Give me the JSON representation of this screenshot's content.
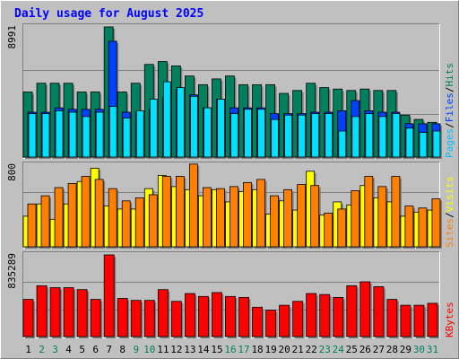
{
  "chart_data": {
    "type": "bar",
    "title": "Daily usage for August 2025",
    "categories": [
      "1",
      "2",
      "3",
      "4",
      "5",
      "6",
      "7",
      "8",
      "9",
      "10",
      "11",
      "12",
      "13",
      "14",
      "15",
      "16",
      "17",
      "18",
      "19",
      "20",
      "21",
      "22",
      "23",
      "24",
      "25",
      "26",
      "27",
      "28",
      "29",
      "30",
      "31"
    ],
    "weekend_days": [
      "2",
      "3",
      "9",
      "10",
      "16",
      "17",
      "23",
      "24",
      "30",
      "31"
    ],
    "colors": {
      "title": "#0000ff",
      "hits": "#00805c",
      "files": "#0040ff",
      "pages": "#00e0ff",
      "visits": "#ffff00",
      "sites": "#ff8000",
      "kbytes": "#ff0000",
      "weekend_label": "#00805c",
      "weekday_label": "#000000"
    },
    "panels": [
      {
        "id": "hits",
        "ymax_label": "8991",
        "ymax": 8991,
        "legend": [
          {
            "text": "Pages",
            "color": "#00c0ff"
          },
          {
            "text": "/",
            "color": "#000000"
          },
          {
            "text": "Files",
            "color": "#0040ff"
          },
          {
            "text": "/",
            "color": "#000000"
          },
          {
            "text": "Hits",
            "color": "#00805c"
          }
        ],
        "series": [
          {
            "name": "Hits",
            "values": [
              4500,
              5100,
              5100,
              5100,
              4500,
              4500,
              8991,
              4500,
              5100,
              6400,
              6600,
              6300,
              5600,
              5000,
              5400,
              5600,
              5000,
              5000,
              5000,
              4400,
              4600,
              5100,
              4800,
              4700,
              4600,
              4700,
              4600,
              4600,
              2900,
              2600,
              2400
            ]
          },
          {
            "name": "Files",
            "values": [
              3100,
              3100,
              3400,
              3300,
              3300,
              3300,
              8000,
              3100,
              3100,
              3300,
              4100,
              4700,
              4300,
              3400,
              4000,
              3400,
              3400,
              3400,
              3000,
              3000,
              3000,
              3100,
              3100,
              3200,
              3900,
              3200,
              3100,
              3100,
              2300,
              2300,
              2300
            ]
          },
          {
            "name": "Pages",
            "values": [
              3000,
              3000,
              3200,
              3100,
              2800,
              3100,
              3500,
              2700,
              3200,
              4000,
              5200,
              4800,
              4200,
              3400,
              4000,
              3000,
              3300,
              3300,
              2600,
              2900,
              2900,
              3000,
              3000,
              1800,
              2800,
              3000,
              2800,
              3000,
              2000,
              1700,
              1800
            ]
          }
        ]
      },
      {
        "id": "visits",
        "ymax_label": "800",
        "ymax": 800,
        "legend": [
          {
            "text": "Sites",
            "color": "#ff8000"
          },
          {
            "text": "/",
            "color": "#000000"
          },
          {
            "text": "Visits",
            "color": "#ffff00"
          }
        ],
        "series": [
          {
            "name": "Visits",
            "values": [
              300,
              420,
              270,
              420,
              640,
              770,
              400,
              370,
              370,
              570,
              700,
              590,
              560,
              500,
              560,
              440,
              540,
              560,
              320,
              450,
              360,
              740,
              310,
              440,
              410,
              600,
              480,
              440,
              300,
              340,
              360
            ]
          },
          {
            "name": "Sites",
            "values": [
              420,
              500,
              580,
              620,
              690,
              660,
              570,
              450,
              480,
              510,
              690,
              690,
              810,
              580,
              570,
              590,
              630,
              660,
              500,
              560,
              610,
              600,
              330,
              370,
              550,
              690,
              590,
              690,
              400,
              380,
              470
            ]
          }
        ]
      },
      {
        "id": "kbytes",
        "ymax_label": "835289",
        "ymax": 835289,
        "legend": [
          {
            "text": "KBytes",
            "color": "#ff0000"
          }
        ],
        "series": [
          {
            "name": "KBytes",
            "values": [
              380000,
              520000,
              500000,
              500000,
              480000,
              380000,
              835289,
              390000,
              370000,
              370000,
              480000,
              360000,
              440000,
              410000,
              450000,
              410000,
              400000,
              300000,
              270000,
              320000,
              360000,
              440000,
              430000,
              400000,
              520000,
              560000,
              510000,
              380000,
              320000,
              320000,
              340000
            ]
          }
        ]
      }
    ]
  }
}
